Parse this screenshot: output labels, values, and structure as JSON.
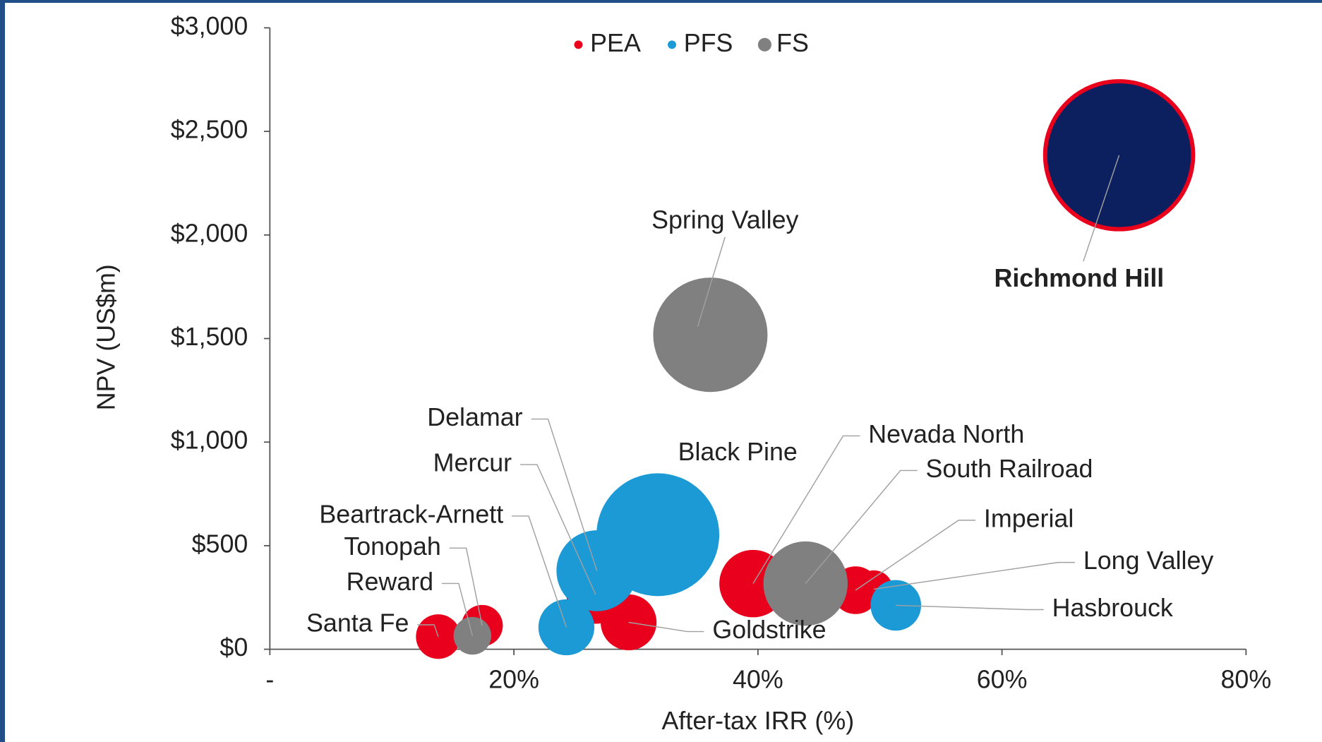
{
  "chart_data": {
    "type": "bubble",
    "x_label": "After-tax IRR (%)",
    "y_label": "NPV (US$m)",
    "xlim": [
      0,
      80
    ],
    "ylim": [
      0,
      3000
    ],
    "xticks": [
      {
        "value": 0,
        "label": "-"
      },
      {
        "value": 20,
        "label": "20%"
      },
      {
        "value": 40,
        "label": "40%"
      },
      {
        "value": 60,
        "label": "60%"
      },
      {
        "value": 80,
        "label": "80%"
      }
    ],
    "yticks": [
      {
        "value": 0,
        "label": "$0"
      },
      {
        "value": 500,
        "label": "$500"
      },
      {
        "value": 1000,
        "label": "$1,000"
      },
      {
        "value": 1500,
        "label": "$1,500"
      },
      {
        "value": 2000,
        "label": "$2,000"
      },
      {
        "value": 2500,
        "label": "$2,500"
      },
      {
        "value": 3000,
        "label": "$3,000"
      }
    ],
    "legend": "top",
    "series": [
      {
        "name": "PEA",
        "color": "#e8001c",
        "points": [
          {
            "label": "Richmond Hill",
            "x": 69.6,
            "y": 2385,
            "size": 77,
            "fill": "#0c1f5e"
          },
          {
            "label": "Mercur",
            "x": 26.7,
            "y": 264,
            "size": 12
          },
          {
            "label": "Tonopah",
            "x": 17.4,
            "y": 114,
            "size": 6
          },
          {
            "label": "Santa Fe",
            "x": 13.8,
            "y": 61,
            "size": 7
          },
          {
            "label": "Goldstrike",
            "x": 29.4,
            "y": 130,
            "size": 11
          },
          {
            "label": "Nevada North",
            "x": 39.6,
            "y": 317,
            "size": 16
          },
          {
            "label": "Imperial",
            "x": 48.0,
            "y": 285,
            "size": 8
          },
          {
            "label": "Long Valley",
            "x": 49.5,
            "y": 290,
            "size": 5
          }
        ]
      },
      {
        "name": "PFS",
        "color": "#1b9ad6",
        "points": [
          {
            "label": "Delamar",
            "x": 26.8,
            "y": 379,
            "size": 23
          },
          {
            "label": "Black Pine",
            "x": 31.8,
            "y": 553,
            "size": 53
          },
          {
            "label": "Beartrack-Arnett",
            "x": 24.3,
            "y": 106,
            "size": 11
          },
          {
            "label": "Hasbrouck",
            "x": 51.3,
            "y": 212,
            "size": 9
          }
        ]
      },
      {
        "name": "FS",
        "color": "#808080",
        "points": [
          {
            "label": "Spring Valley",
            "x": 36.1,
            "y": 1518,
            "size": 46
          },
          {
            "label": "Reward",
            "x": 16.6,
            "y": 65,
            "size": 5
          },
          {
            "label": "South Railroad",
            "x": 43.9,
            "y": 317,
            "size": 25
          }
        ]
      }
    ]
  }
}
